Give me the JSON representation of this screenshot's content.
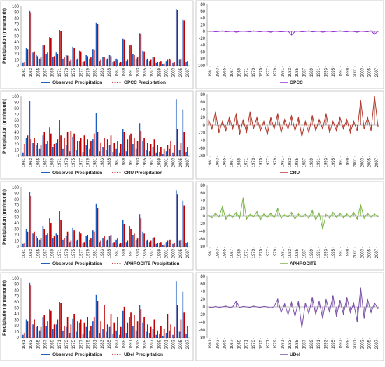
{
  "chart_data": [
    {
      "type": "bar",
      "panel": "left",
      "ylabel": "Precipitation (mm/month)",
      "ylim": [
        0,
        100
      ],
      "yticks": [
        0,
        10,
        20,
        30,
        40,
        50,
        60,
        70,
        80,
        90,
        100
      ],
      "xticks": [
        "1961",
        "1963",
        "1965",
        "1967",
        "1969",
        "1971",
        "1973",
        "1975",
        "1977",
        "1979",
        "1981",
        "1983",
        "1985",
        "1987",
        "1989",
        "1991",
        "1993",
        "1995",
        "1997",
        "1999",
        "2001",
        "2003",
        "2005",
        "2007"
      ],
      "colors": {
        "observed": "#1f5fbf",
        "product": "#c00000"
      },
      "series": [
        {
          "name": "Observed Precipitation",
          "values": [
            5,
            30,
            92,
            22,
            18,
            12,
            35,
            20,
            48,
            15,
            22,
            60,
            12,
            18,
            8,
            32,
            10,
            25,
            6,
            18,
            12,
            28,
            72,
            8,
            15,
            10,
            18,
            6,
            12,
            5,
            45,
            8,
            35,
            20,
            12,
            55,
            25,
            10,
            8,
            15,
            5,
            6,
            3,
            8,
            12,
            5,
            95,
            10,
            78,
            6
          ]
        },
        {
          "name": "GPCC Precipitation",
          "values": [
            6,
            28,
            90,
            24,
            16,
            14,
            34,
            22,
            46,
            16,
            20,
            58,
            14,
            17,
            10,
            30,
            12,
            24,
            8,
            16,
            14,
            26,
            70,
            10,
            14,
            12,
            16,
            8,
            10,
            6,
            44,
            10,
            34,
            18,
            14,
            53,
            24,
            12,
            10,
            14,
            6,
            8,
            4,
            10,
            10,
            6,
            93,
            12,
            76,
            8
          ]
        }
      ]
    },
    {
      "type": "bar",
      "panel": "left",
      "ylabel": "Precipitation (mm/month)",
      "ylim": [
        0,
        100
      ],
      "yticks": [
        0,
        10,
        20,
        30,
        40,
        50,
        60,
        70,
        80,
        90,
        100
      ],
      "xticks": [
        "1961",
        "1963",
        "1965",
        "1967",
        "1969",
        "1971",
        "1973",
        "1975",
        "1977",
        "1979",
        "1981",
        "1983",
        "1985",
        "1987",
        "1989",
        "1991",
        "1993",
        "1995",
        "1997",
        "1999",
        "2001",
        "2003",
        "2005",
        "2007"
      ],
      "colors": {
        "observed": "#1f5fbf",
        "product": "#c00000"
      },
      "series": [
        {
          "name": "Observed Precipitation",
          "values": [
            5,
            30,
            92,
            22,
            18,
            12,
            35,
            20,
            48,
            15,
            22,
            60,
            12,
            18,
            8,
            32,
            10,
            25,
            6,
            18,
            12,
            28,
            72,
            8,
            15,
            10,
            18,
            6,
            12,
            5,
            45,
            8,
            35,
            20,
            12,
            55,
            25,
            10,
            8,
            15,
            5,
            6,
            3,
            8,
            12,
            5,
            95,
            10,
            78,
            6
          ]
        },
        {
          "name": "CRU Precipitation",
          "values": [
            20,
            35,
            28,
            30,
            22,
            18,
            40,
            25,
            38,
            20,
            28,
            35,
            30,
            40,
            42,
            38,
            25,
            30,
            35,
            28,
            25,
            38,
            40,
            22,
            30,
            28,
            35,
            22,
            25,
            20,
            40,
            28,
            38,
            30,
            25,
            42,
            30,
            22,
            20,
            28,
            18,
            15,
            12,
            18,
            25,
            18,
            45,
            22,
            40,
            15
          ]
        }
      ]
    },
    {
      "type": "bar",
      "panel": "left",
      "ylabel": "Precipitation (mm/month)",
      "ylim": [
        0,
        100
      ],
      "yticks": [
        0,
        10,
        20,
        30,
        40,
        50,
        60,
        70,
        80,
        90,
        100
      ],
      "xticks": [
        "1961",
        "1963",
        "1965",
        "1967",
        "1969",
        "1971",
        "1973",
        "1975",
        "1977",
        "1979",
        "1981",
        "1983",
        "1985",
        "1987",
        "1989",
        "1991",
        "1993",
        "1995",
        "1997",
        "1999",
        "2001",
        "2003",
        "2005",
        "2007"
      ],
      "colors": {
        "observed": "#1f5fbf",
        "product": "#c00000"
      },
      "series": [
        {
          "name": "Observed Precipitation",
          "values": [
            5,
            30,
            92,
            22,
            18,
            12,
            35,
            20,
            48,
            15,
            22,
            60,
            12,
            18,
            8,
            32,
            10,
            25,
            6,
            18,
            12,
            28,
            72,
            8,
            15,
            10,
            18,
            6,
            12,
            5,
            45,
            8,
            35,
            20,
            12,
            55,
            25,
            10,
            8,
            15,
            5,
            6,
            3,
            8,
            12,
            5,
            95,
            10,
            78,
            6
          ]
        },
        {
          "name": "APHRODITE Precipitation",
          "values": [
            6,
            25,
            85,
            25,
            15,
            15,
            30,
            22,
            40,
            18,
            20,
            45,
            15,
            25,
            10,
            28,
            12,
            22,
            8,
            20,
            14,
            25,
            65,
            10,
            18,
            12,
            20,
            8,
            14,
            6,
            38,
            10,
            30,
            22,
            14,
            48,
            22,
            12,
            10,
            16,
            6,
            8,
            4,
            10,
            12,
            6,
            88,
            12,
            70,
            8
          ]
        }
      ]
    },
    {
      "type": "bar",
      "panel": "left",
      "ylabel": "Precipitation (mm/month)",
      "ylim": [
        0,
        100
      ],
      "yticks": [
        0,
        10,
        20,
        30,
        40,
        50,
        60,
        70,
        80,
        90,
        100
      ],
      "xticks": [
        "1961",
        "1963",
        "1965",
        "1967",
        "1969",
        "1971",
        "1973",
        "1975",
        "1977",
        "1979",
        "1981",
        "1983",
        "1985",
        "1987",
        "1989",
        "1991",
        "1993",
        "1995",
        "1997",
        "1999",
        "2001",
        "2003",
        "2005",
        "2007"
      ],
      "colors": {
        "observed": "#1f5fbf",
        "product": "#c00000"
      },
      "series": [
        {
          "name": "Observed Precipitation",
          "values": [
            5,
            30,
            92,
            22,
            18,
            12,
            35,
            20,
            48,
            15,
            22,
            60,
            12,
            18,
            8,
            32,
            10,
            25,
            6,
            18,
            12,
            28,
            72,
            8,
            15,
            10,
            18,
            6,
            12,
            5,
            45,
            8,
            35,
            20,
            12,
            55,
            25,
            10,
            8,
            15,
            5,
            6,
            3,
            8,
            12,
            5,
            95,
            10,
            78,
            6
          ]
        },
        {
          "name": "UDel Precipitation",
          "values": [
            8,
            28,
            88,
            30,
            20,
            18,
            38,
            28,
            45,
            22,
            30,
            58,
            20,
            35,
            22,
            40,
            28,
            30,
            25,
            35,
            20,
            35,
            62,
            28,
            55,
            22,
            40,
            25,
            35,
            18,
            52,
            25,
            42,
            38,
            28,
            48,
            35,
            22,
            18,
            30,
            12,
            20,
            15,
            40,
            22,
            18,
            55,
            30,
            42,
            20
          ]
        }
      ]
    },
    {
      "type": "line",
      "panel": "right",
      "ylim": [
        -100,
        80
      ],
      "yticks": [
        80,
        60,
        40,
        20,
        0,
        -20,
        -40,
        -60,
        -80,
        -100
      ],
      "xticks": [
        "1961",
        "1963",
        "1965",
        "1967",
        "1969",
        "1971",
        "1973",
        "1975",
        "1977",
        "1979",
        "1981",
        "1983",
        "1985",
        "1987",
        "1989",
        "1991",
        "1993",
        "1995",
        "1997",
        "1999",
        "2001",
        "2003",
        "2005",
        "2007"
      ],
      "legend": "GPCC",
      "color": "#9b30d9",
      "series": [
        {
          "name": "GPCC",
          "values": [
            0,
            1,
            -1,
            0,
            2,
            -1,
            0,
            1,
            -2,
            0,
            1,
            0,
            -1,
            2,
            0,
            -1,
            1,
            0,
            -2,
            1,
            0,
            -1,
            0,
            1,
            -10,
            0,
            1,
            -1,
            0,
            2,
            -1,
            0,
            1,
            -2,
            0,
            1,
            -1,
            0,
            2,
            0,
            -1,
            1,
            0,
            -2,
            1,
            0,
            -1,
            2,
            -8,
            1
          ]
        }
      ]
    },
    {
      "type": "line",
      "panel": "right",
      "ylim": [
        -80,
        80
      ],
      "yticks": [
        80,
        60,
        40,
        20,
        0,
        -20,
        -40,
        -60,
        -80
      ],
      "xticks": [
        "1961",
        "1963",
        "1965",
        "1967",
        "1969",
        "1971",
        "1973",
        "1975",
        "1977",
        "1979",
        "1981",
        "1983",
        "1985",
        "1987",
        "1989",
        "1991",
        "1993",
        "1995",
        "1997",
        "1999",
        "2001",
        "2003",
        "2005",
        "2007"
      ],
      "legend": "CRU",
      "color": "#b03a2e",
      "series": [
        {
          "name": "CRU",
          "values": [
            15,
            -10,
            35,
            -20,
            10,
            -15,
            20,
            -10,
            30,
            -25,
            15,
            -20,
            35,
            -10,
            20,
            -15,
            10,
            -25,
            20,
            -10,
            30,
            -20,
            15,
            -10,
            25,
            -15,
            20,
            -30,
            10,
            -20,
            25,
            -15,
            15,
            -10,
            30,
            -20,
            10,
            -15,
            20,
            -10,
            15,
            -20,
            10,
            -15,
            65,
            -10,
            20,
            -15,
            75,
            -5
          ]
        }
      ]
    },
    {
      "type": "line",
      "panel": "right",
      "ylim": [
        -80,
        80
      ],
      "yticks": [
        80,
        60,
        40,
        20,
        0,
        -20,
        -40,
        -60,
        -80
      ],
      "xticks": [
        "1961",
        "1963",
        "1965",
        "1967",
        "1969",
        "1971",
        "1973",
        "1975",
        "1977",
        "1979",
        "1981",
        "1983",
        "1985",
        "1987",
        "1989",
        "1991",
        "1993",
        "1995",
        "1997",
        "1999",
        "2001",
        "2003",
        "2005",
        "2007"
      ],
      "legend": "APHRODITE",
      "color": "#7ab648",
      "series": [
        {
          "name": "APHRODITE",
          "values": [
            2,
            -5,
            8,
            -3,
            25,
            -8,
            5,
            -4,
            10,
            -6,
            48,
            -8,
            5,
            -3,
            12,
            -10,
            6,
            -4,
            8,
            -5,
            20,
            -6,
            4,
            -3,
            10,
            -8,
            6,
            -4,
            5,
            -6,
            15,
            -10,
            8,
            -35,
            5,
            -6,
            10,
            -4,
            8,
            -5,
            6,
            -4,
            10,
            -8,
            30,
            -6,
            8,
            -4,
            6,
            -3
          ]
        }
      ]
    },
    {
      "type": "line",
      "panel": "right",
      "ylim": [
        -80,
        80
      ],
      "yticks": [
        80,
        60,
        40,
        20,
        0,
        -20,
        -40,
        -60,
        -80
      ],
      "xticks": [
        "1961",
        "1963",
        "1965",
        "1967",
        "1969",
        "1971",
        "1973",
        "1975",
        "1977",
        "1979",
        "1981",
        "1983",
        "1985",
        "1987",
        "1989",
        "1991",
        "1993",
        "1995",
        "1997",
        "1999",
        "2001",
        "2003",
        "2005",
        "2007"
      ],
      "legend": "UDel",
      "color": "#7b4fa8",
      "series": [
        {
          "name": "UDel",
          "values": [
            0,
            -2,
            1,
            -1,
            0,
            2,
            -1,
            0,
            15,
            -2,
            1,
            0,
            -1,
            2,
            0,
            -1,
            1,
            0,
            -3,
            1,
            20,
            -15,
            8,
            -20,
            12,
            -25,
            15,
            -55,
            10,
            -18,
            25,
            -20,
            15,
            -30,
            20,
            -15,
            30,
            -25,
            18,
            -20,
            25,
            -15,
            10,
            -40,
            50,
            -30,
            20,
            -15,
            10,
            -5
          ]
        }
      ]
    }
  ]
}
